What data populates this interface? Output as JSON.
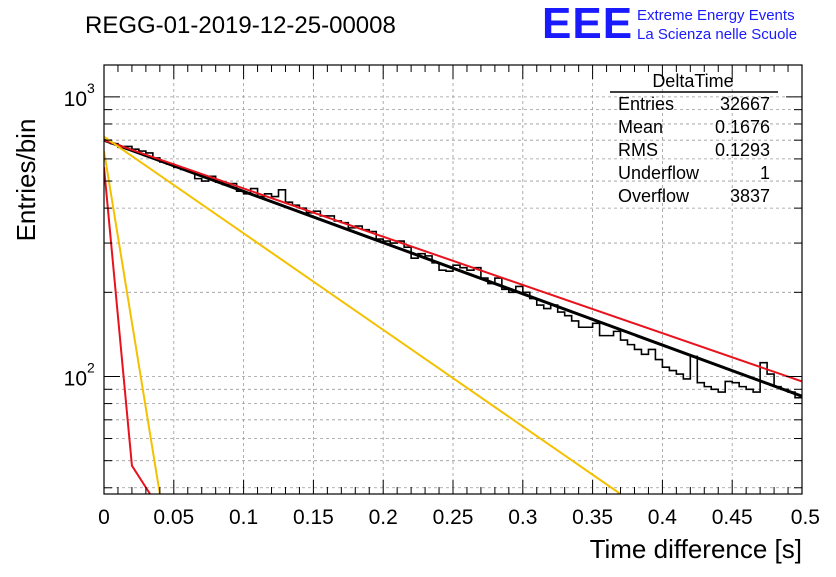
{
  "page": {
    "title": "REGG-01-2019-12-25-00008",
    "logo": {
      "mark": "EEE",
      "line1": "Extreme Energy Events",
      "line2": "La Scienza nelle Scuole",
      "color": "#1a1aff"
    }
  },
  "stats_box": {
    "title": "DeltaTime",
    "rows": [
      {
        "label": "Entries",
        "value": "32667"
      },
      {
        "label": "Mean",
        "value": "0.1676"
      },
      {
        "label": "RMS",
        "value": "0.1293"
      },
      {
        "label": "Underflow",
        "value": "1"
      },
      {
        "label": "Overflow",
        "value": "3837"
      }
    ]
  },
  "chart_data": {
    "type": "line",
    "title": "REGG-01-2019-12-25-00008",
    "xlabel": "Time difference [s]",
    "ylabel": "Entries/bin",
    "xlim": [
      0,
      0.5
    ],
    "ylim": [
      38,
      1300
    ],
    "yscale": "log",
    "grid": true,
    "x_ticks": [
      0,
      0.05,
      0.1,
      0.15,
      0.2,
      0.25,
      0.3,
      0.35,
      0.4,
      0.45,
      0.5
    ],
    "x_tick_labels": [
      "0",
      "0.05",
      "0.1",
      "0.15",
      "0.2",
      "0.25",
      "0.3",
      "0.35",
      "0.4",
      "0.45",
      "0.5"
    ],
    "y_tick_labels": [
      {
        "value": 100,
        "base": "10",
        "exp": "2"
      },
      {
        "value": 1000,
        "base": "10",
        "exp": "3"
      }
    ],
    "histogram": {
      "color": "#000000",
      "bin_width": 0.005,
      "values": [
        700,
        680,
        660,
        665,
        650,
        640,
        630,
        605,
        585,
        575,
        560,
        550,
        540,
        510,
        500,
        520,
        495,
        485,
        490,
        460,
        450,
        470,
        440,
        450,
        440,
        465,
        420,
        410,
        400,
        385,
        390,
        375,
        375,
        360,
        355,
        340,
        345,
        335,
        330,
        310,
        305,
        300,
        305,
        290,
        265,
        275,
        270,
        255,
        240,
        238,
        250,
        245,
        240,
        245,
        225,
        215,
        225,
        205,
        200,
        210,
        200,
        190,
        180,
        175,
        180,
        170,
        165,
        158,
        150,
        150,
        155,
        140,
        140,
        145,
        135,
        130,
        125,
        120,
        125,
        115,
        108,
        105,
        102,
        98,
        118,
        95,
        92,
        90,
        88,
        96,
        95,
        92,
        90,
        88,
        112,
        102,
        92,
        90,
        88,
        84
      ]
    },
    "series": [
      {
        "color": "#000000",
        "style": "thick",
        "x": [
          0,
          0.5
        ],
        "y": [
          700,
          85
        ]
      },
      {
        "color": "#e8121d",
        "x": [
          0,
          0.5
        ],
        "y": [
          700,
          96
        ]
      },
      {
        "color": "#e8121d",
        "x": [
          0,
          0.02,
          0.033
        ],
        "y": [
          560,
          48,
          38
        ]
      },
      {
        "color": "#f4c000",
        "x": [
          0,
          0.37
        ],
        "y": [
          720,
          38
        ]
      },
      {
        "color": "#f4c000",
        "x": [
          0,
          0.04
        ],
        "y": [
          640,
          38
        ]
      }
    ]
  }
}
